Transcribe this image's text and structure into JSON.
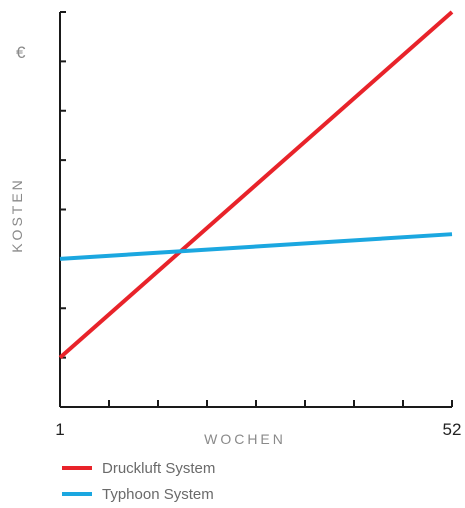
{
  "chart_data": {
    "type": "line",
    "title": "",
    "xlabel": "WOCHEN",
    "ylabel": "KOSTEN",
    "y_unit": "€",
    "xlim": [
      1,
      52
    ],
    "ylim": [
      0,
      8
    ],
    "x_tick_labels": [
      "1",
      "52"
    ],
    "y_ticks_labeled": false,
    "grid": false,
    "legend_position": "bottom-left",
    "series": [
      {
        "name": "Druckluft System",
        "color": "#e8232a",
        "x": [
          1,
          52
        ],
        "y": [
          1,
          8
        ]
      },
      {
        "name": "Typhoon System",
        "color": "#1ba7e0",
        "x": [
          1,
          52
        ],
        "y": [
          3,
          3.5
        ]
      }
    ]
  }
}
